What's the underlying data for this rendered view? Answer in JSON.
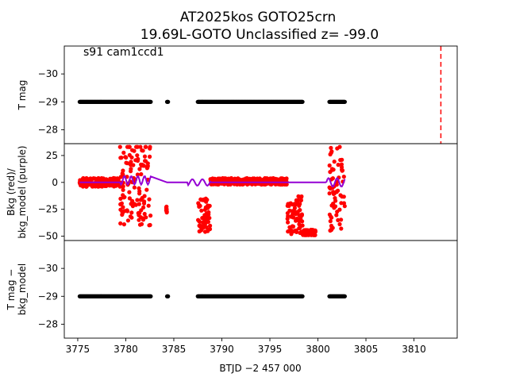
{
  "title": {
    "line1": "AT2025kos  GOTO25crn",
    "line2": "19.69L-GOTO Unclassified z= -99.0"
  },
  "chart_data": [
    {
      "type": "scatter",
      "panel": "top",
      "annotation": "s91 cam1ccd1",
      "ylabel": "T mag",
      "ylim": [
        -27.5,
        -31.0
      ],
      "yticks": [
        "−30",
        "−29",
        "−28"
      ],
      "ytick_values": [
        -30,
        -29,
        -28
      ],
      "vline": {
        "x": 3812.8,
        "color": "#ff0000",
        "style": "dashed"
      },
      "series": [
        {
          "color": "#000000",
          "y": -29.0,
          "x_segments": [
            [
              3775.2,
              3782.6
            ],
            [
              3784.3,
              3784.4
            ],
            [
              3787.5,
              3798.4
            ],
            [
              3801.2,
              3802.8
            ]
          ]
        }
      ]
    },
    {
      "type": "scatter",
      "panel": "middle",
      "ylabel": "Bkg (red)/\nbkg_model (purple)",
      "ylabel_lines": [
        "Bkg (red)/",
        "bkg_model (purple)"
      ],
      "ylim": [
        -54,
        36
      ],
      "yticks": [
        "25",
        "0",
        "−25",
        "−50"
      ],
      "ytick_values": [
        25,
        0,
        -25,
        -50
      ],
      "series": [
        {
          "name": "Bkg",
          "color": "#ff0000"
        },
        {
          "name": "bkg_model",
          "color": "#9400d3"
        }
      ]
    },
    {
      "type": "scatter",
      "panel": "bottom",
      "ylabel": "T mag −\nbkg_model",
      "ylabel_lines": [
        "T mag −",
        "bkg_model"
      ],
      "ylim": [
        -27.5,
        -31.0
      ],
      "yticks": [
        "−30",
        "−29",
        "−28"
      ],
      "ytick_values": [
        -30,
        -29,
        -28
      ],
      "xlabel": "BTJD −2 457 000",
      "xlim": [
        3773.6,
        3814.5
      ],
      "xticks": [
        "3775",
        "3780",
        "3785",
        "3790",
        "3795",
        "3800",
        "3805",
        "3810"
      ],
      "xtick_values": [
        3775,
        3780,
        3785,
        3790,
        3795,
        3800,
        3805,
        3810
      ],
      "series": [
        {
          "color": "#000000",
          "y": -29.0,
          "x_segments": [
            [
              3775.2,
              3782.6
            ],
            [
              3784.3,
              3784.4
            ],
            [
              3787.5,
              3798.4
            ],
            [
              3801.2,
              3802.8
            ]
          ]
        }
      ]
    }
  ]
}
